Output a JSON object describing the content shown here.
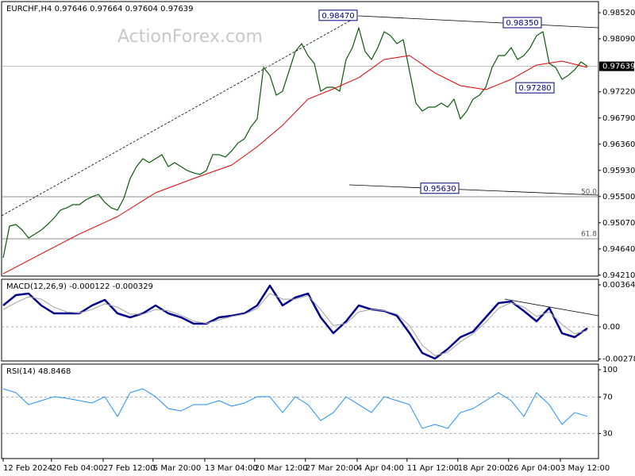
{
  "chart_data": [
    {
      "type": "line",
      "title": "EURCHF,H4  0.97646 0.97664 0.97604 0.97639",
      "watermark": "ActionForex.com",
      "xlim": [
        -0.25,
        93.75
      ],
      "ylim": [
        0.94194,
        0.98702
      ],
      "yticks": [
        {
          "value": 0.9852,
          "label": "0.98520"
        },
        {
          "value": 0.9809,
          "label": "0.98090"
        },
        {
          "value": 0.9722,
          "label": "0.97220"
        },
        {
          "value": 0.9679,
          "label": "0.96790"
        },
        {
          "value": 0.9636,
          "label": "0.96360"
        },
        {
          "value": 0.9593,
          "label": "0.95930"
        },
        {
          "value": 0.955,
          "label": "0.95500"
        },
        {
          "value": 0.9507,
          "label": "0.95070"
        },
        {
          "value": 0.9464,
          "label": "0.94640"
        },
        {
          "value": 0.9421,
          "label": "0.94210"
        }
      ],
      "last_price": 0.97639,
      "fib_levels": [
        {
          "label": "50.0",
          "price": 0.95497
        },
        {
          "label": "61.8",
          "price": 0.94806
        }
      ],
      "annotations": [
        {
          "value": 0.9847,
          "label": "0.98470",
          "x": 56
        },
        {
          "value": 0.9835,
          "label": "0.98350",
          "x": 85
        },
        {
          "value": 0.9728,
          "label": "0.97280",
          "x": 87
        },
        {
          "value": 0.9563,
          "label": "0.95630",
          "x": 72
        }
      ],
      "series": [
        {
          "name": "EURCHF",
          "color": "#0a5a0a",
          "width": 1.2,
          "x": [
            0,
            1,
            2,
            3,
            4,
            5,
            6,
            7,
            8,
            9,
            10,
            11,
            12,
            13,
            14,
            15,
            16,
            17,
            18,
            19,
            20,
            21,
            22,
            23,
            24,
            25,
            26,
            27,
            28,
            29,
            30,
            31,
            32,
            33,
            34,
            35,
            36,
            37,
            38,
            39,
            40,
            41,
            42,
            43,
            44,
            45,
            46,
            47,
            48,
            49,
            50,
            51,
            52,
            53,
            54,
            55,
            56,
            57,
            58,
            59,
            60,
            61,
            62,
            63,
            64,
            65,
            66,
            67,
            68,
            69,
            70,
            71,
            72,
            73,
            74,
            75,
            76,
            77,
            78,
            79,
            80,
            81,
            82,
            83,
            84,
            85,
            86,
            87,
            88,
            89,
            90,
            91,
            92
          ],
          "values": [
            0.94494,
            0.95015,
            0.95041,
            0.9495,
            0.94819,
            0.94885,
            0.9495,
            0.95041,
            0.95145,
            0.95276,
            0.95315,
            0.95367,
            0.95367,
            0.95445,
            0.95497,
            0.95536,
            0.95406,
            0.95315,
            0.95276,
            0.95471,
            0.95797,
            0.95992,
            0.96122,
            0.96057,
            0.96122,
            0.96188,
            0.95992,
            0.96057,
            0.95992,
            0.95927,
            0.95888,
            0.95862,
            0.95927,
            0.96188,
            0.96188,
            0.96149,
            0.96253,
            0.96383,
            0.96448,
            0.96644,
            0.96774,
            0.97621,
            0.97491,
            0.97165,
            0.9723,
            0.97556,
            0.97882,
            0.98012,
            0.97816,
            0.97686,
            0.9723,
            0.97295,
            0.97295,
            0.9723,
            0.97751,
            0.97947,
            0.98272,
            0.97882,
            0.97751,
            0.97947,
            0.98207,
            0.98142,
            0.98012,
            0.98077,
            0.97556,
            0.97035,
            0.96904,
            0.96969,
            0.96969,
            0.97035,
            0.96969,
            0.971,
            0.96774,
            0.96904,
            0.971,
            0.97165,
            0.97295,
            0.97621,
            0.97816,
            0.97816,
            0.97947,
            0.97751,
            0.97816,
            0.97947,
            0.98142,
            0.98207,
            0.97686,
            0.97621,
            0.97425,
            0.97491,
            0.97582,
            0.97712,
            0.97639
          ]
        },
        {
          "name": "MA",
          "color": "#e00000",
          "width": 1,
          "x": [
            0,
            6,
            12,
            18,
            24,
            30,
            36,
            40,
            44,
            48,
            52,
            56,
            60,
            64,
            68,
            72,
            76,
            80,
            84,
            88,
            92
          ],
          "values": [
            0.94233,
            0.94559,
            0.94885,
            0.95171,
            0.95562,
            0.95797,
            0.96018,
            0.96318,
            0.9667,
            0.971,
            0.97269,
            0.97452,
            0.97751,
            0.97816,
            0.9753,
            0.97321,
            0.97256,
            0.97425,
            0.9766,
            0.97725,
            0.97621
          ]
        }
      ]
    },
    {
      "type": "line",
      "title": "MACD(12,26,9) -0.000122 -0.000329",
      "xlim": [
        -0.25,
        93.75
      ],
      "ylim": [
        -0.002954,
        0.004122
      ],
      "yticks": [
        0.003641,
        {
          "value": 0,
          "label": "0.00"
        },
        -0.002788
      ],
      "levels": [
        0
      ],
      "series": [
        {
          "name": "MACD",
          "color": "#00008b",
          "width": 2.5,
          "x": [
            0,
            2,
            4,
            6,
            8,
            10,
            12,
            14,
            16,
            18,
            20,
            22,
            24,
            26,
            28,
            30,
            32,
            34,
            36,
            38,
            40,
            42,
            44,
            46,
            48,
            50,
            52,
            54,
            56,
            58,
            60,
            62,
            64,
            66,
            68,
            70,
            72,
            74,
            76,
            78,
            80,
            82,
            84,
            86,
            88,
            90,
            92
          ],
          "values": [
            0.001855,
            0.002748,
            0.002885,
            0.001855,
            0.001168,
            0.001168,
            0.001168,
            0.001855,
            0.002336,
            0.001168,
            0.000824,
            0.001168,
            0.001855,
            0.001168,
            0.000824,
            0.000275,
            0.000275,
            0.000824,
            0.000962,
            0.001168,
            0.001855,
            0.003572,
            0.001855,
            0.002542,
            0.002885,
            0.000824,
            -0.00055,
            0.000481,
            0.001855,
            0.001511,
            0.001374,
            0.000962,
            -0.00055,
            -0.002267,
            -0.002748,
            -0.001924,
            -0.000893,
            -0.000412,
            0.000824,
            0.002061,
            0.002198,
            0.001374,
            0.000481,
            0.001649,
            -0.00055,
            -0.000893,
            -0.000122
          ]
        },
        {
          "name": "Signal",
          "color": "#a0a0a0",
          "width": 1,
          "x": [
            0,
            2,
            4,
            6,
            8,
            10,
            12,
            14,
            16,
            18,
            20,
            22,
            24,
            26,
            28,
            30,
            32,
            34,
            36,
            38,
            40,
            42,
            44,
            46,
            48,
            50,
            52,
            54,
            56,
            58,
            60,
            62,
            64,
            66,
            68,
            70,
            72,
            74,
            76,
            78,
            80,
            82,
            84,
            86,
            88,
            90,
            92
          ],
          "values": [
            0.0015,
            0.0021,
            0.0026,
            0.0024,
            0.0017,
            0.0013,
            0.0012,
            0.0015,
            0.002,
            0.0017,
            0.0011,
            0.0011,
            0.0015,
            0.0014,
            0.001,
            0.0005,
            0.0003,
            0.0006,
            0.0009,
            0.0011,
            0.0016,
            0.0029,
            0.0024,
            0.0024,
            0.0027,
            0.0015,
            0.0001,
            0.0003,
            0.0013,
            0.0015,
            0.0014,
            0.0011,
            0.0001,
            -0.0016,
            -0.0025,
            -0.0022,
            -0.0013,
            -0.0006,
            0.0004,
            0.0016,
            0.0021,
            0.0017,
            0.0009,
            0.0013,
            0.0002,
            -0.0006,
            -0.000329
          ]
        }
      ]
    },
    {
      "type": "line",
      "title": "RSI(14) 48.8468",
      "xlim": [
        -0.25,
        93.75
      ],
      "ylim": [
        2.6,
        106.1
      ],
      "yticks": [
        100,
        70,
        30
      ],
      "levels": [
        70,
        30
      ],
      "xticks": [
        {
          "value": 0,
          "label": "12 Feb 2024"
        },
        {
          "value": 7.6,
          "label": "20 Feb 04:00"
        },
        {
          "value": 15.75,
          "label": "27 Feb 12:00"
        },
        {
          "value": 23.6,
          "label": "5 Mar 20:00"
        },
        {
          "value": 31.75,
          "label": "13 Mar 04:00"
        },
        {
          "value": 39.6,
          "label": "20 Mar 12:00"
        },
        {
          "value": 47.6,
          "label": "27 Mar 20:00"
        },
        {
          "value": 55.75,
          "label": "4 Apr 04:00"
        },
        {
          "value": 63.6,
          "label": "11 Apr 12:00"
        },
        {
          "value": 71.6,
          "label": "18 Apr 20:00"
        },
        {
          "value": 79.6,
          "label": "26 Apr 04:00"
        },
        {
          "value": 87.75,
          "label": "3 May 12:00"
        }
      ],
      "series": [
        {
          "name": "RSI",
          "color": "#1e90ff",
          "width": 1,
          "x": [
            0,
            2,
            4,
            6,
            8,
            10,
            12,
            14,
            16,
            18,
            20,
            22,
            24,
            26,
            28,
            30,
            32,
            34,
            36,
            38,
            40,
            42,
            44,
            46,
            48,
            50,
            52,
            54,
            56,
            58,
            60,
            62,
            64,
            66,
            68,
            70,
            72,
            74,
            76,
            78,
            80,
            82,
            84,
            86,
            88,
            90,
            92
          ],
          "values": [
            79.1,
            74.8,
            61.7,
            66.1,
            70.4,
            68.7,
            66.1,
            63.5,
            70.4,
            48.7,
            74.8,
            79.1,
            70.4,
            57.4,
            54.8,
            61.7,
            61.7,
            66.1,
            60.0,
            63.5,
            70.4,
            70.4,
            53.0,
            70.4,
            61.7,
            44.3,
            53.0,
            70.4,
            61.7,
            53.0,
            70.4,
            66.1,
            61.7,
            35.7,
            40.0,
            35.7,
            53.0,
            57.4,
            66.1,
            74.8,
            66.1,
            48.7,
            74.8,
            61.7,
            40.0,
            53.0,
            48.8468
          ]
        }
      ]
    }
  ]
}
